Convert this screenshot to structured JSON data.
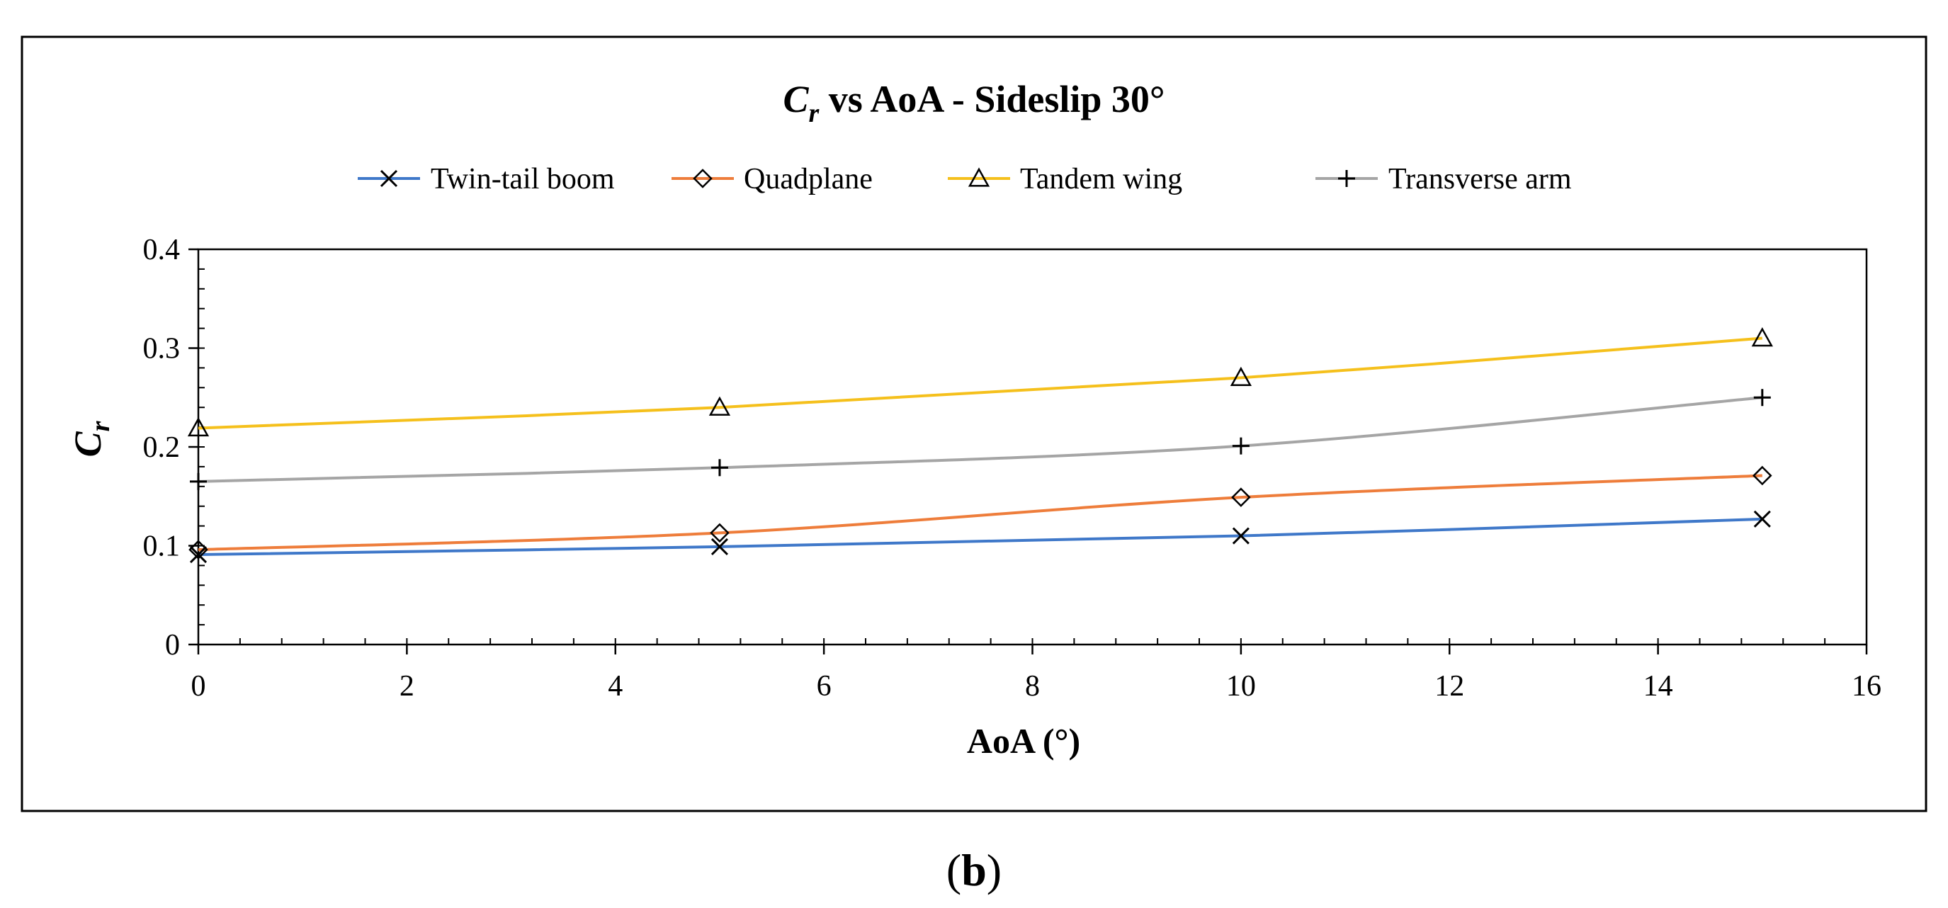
{
  "chart_data": {
    "type": "line",
    "title_main": "C",
    "title_sub": "r",
    "title_rest": " vs AoA - Sideslip 30°",
    "xlabel": "AoA (°)",
    "ylabel_main": "C",
    "ylabel_sub": "r",
    "xlim": [
      0,
      16
    ],
    "ylim": [
      0,
      0.4
    ],
    "xticks": [
      "0",
      "2",
      "4",
      "6",
      "8",
      "10",
      "12",
      "14",
      "16"
    ],
    "yticks": [
      "0",
      "0.1",
      "0.2",
      "0.3",
      "0.4"
    ],
    "legend_position": "top",
    "grid": false,
    "x": [
      0,
      5,
      10,
      15
    ],
    "series": [
      {
        "name": "Twin-tail boom",
        "color": "#3f78c9",
        "marker": "x",
        "values": [
          0.091,
          0.099,
          0.11,
          0.127
        ]
      },
      {
        "name": "Quadplane",
        "color": "#ee7d3b",
        "marker": "diamond",
        "values": [
          0.096,
          0.113,
          0.149,
          0.171
        ]
      },
      {
        "name": "Tandem wing",
        "color": "#f5c01c",
        "marker": "triangle",
        "values": [
          0.219,
          0.24,
          0.27,
          0.31
        ]
      },
      {
        "name": "Transverse arm",
        "color": "#a5a5a5",
        "marker": "plus",
        "values": [
          0.165,
          0.179,
          0.201,
          0.25
        ]
      }
    ]
  },
  "caption": {
    "open": "(",
    "letter": "b",
    "close": ")"
  }
}
